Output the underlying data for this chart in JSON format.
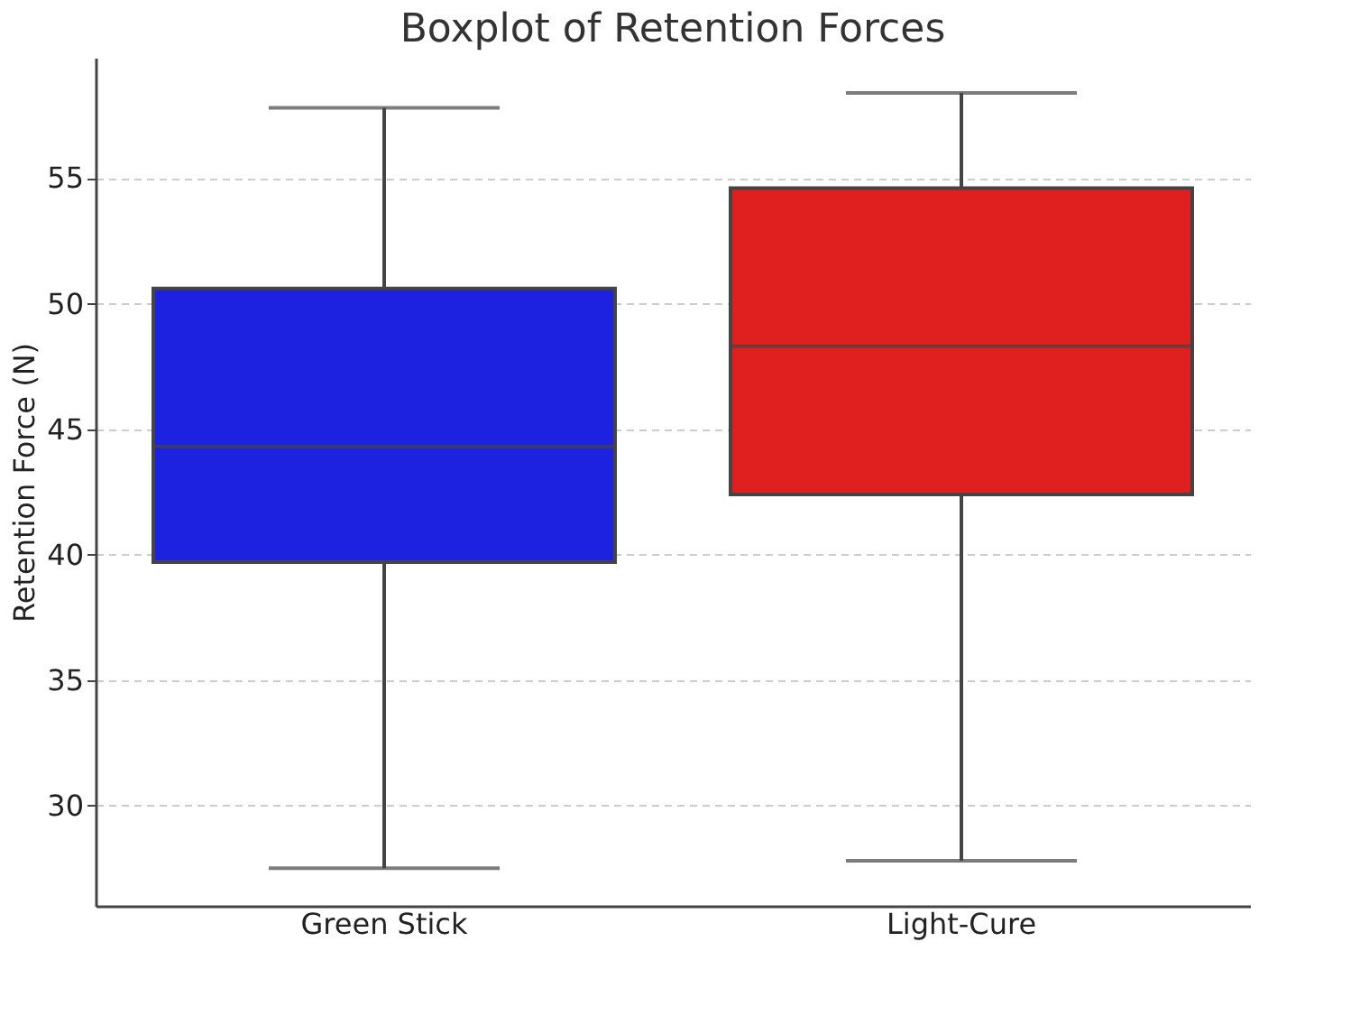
{
  "chart_data": {
    "type": "box",
    "title": "Boxplot of Retention Forces",
    "ylabel": "Retention Force (N)",
    "categories": [
      "Green Stick",
      "Light-Cure"
    ],
    "colors": [
      "#1c22e0",
      "#e01f1f"
    ],
    "boxes": [
      {
        "low": 27.5,
        "q1": 39.7,
        "median": 44.3,
        "q3": 50.6,
        "high": 57.8
      },
      {
        "low": 27.8,
        "q1": 42.4,
        "median": 48.3,
        "q3": 54.6,
        "high": 58.4
      }
    ],
    "ylim": [
      26,
      59.8
    ],
    "yticks": [
      30,
      35,
      40,
      45,
      50,
      55
    ],
    "grid": "y",
    "line_style": "dashed"
  }
}
